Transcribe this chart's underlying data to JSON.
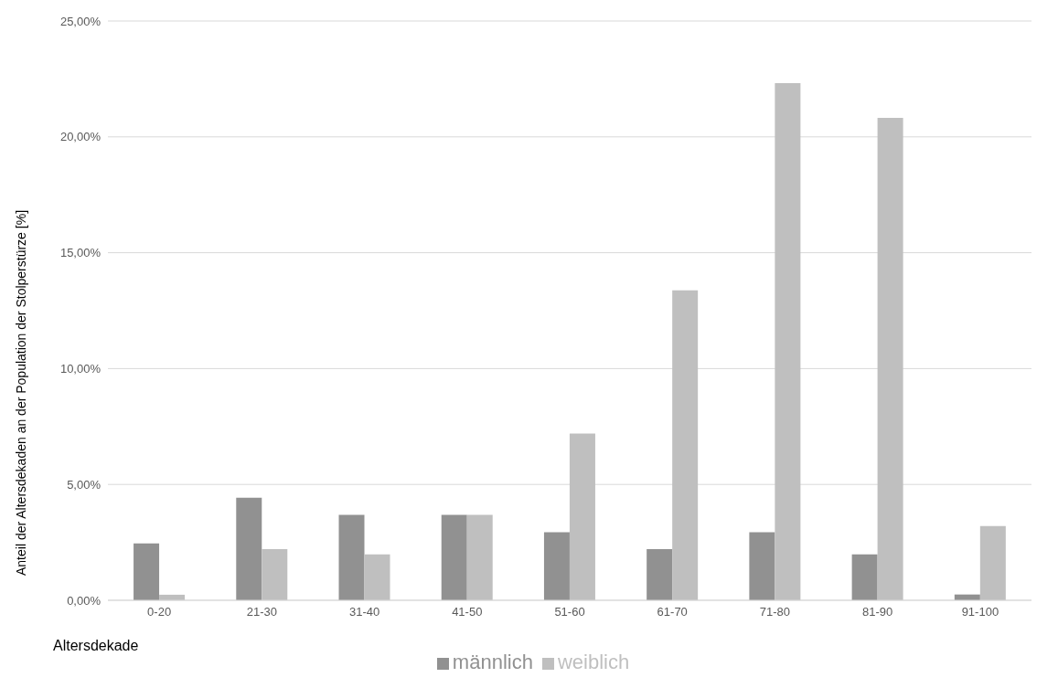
{
  "chart_data": {
    "type": "bar",
    "xlabel": "Altersdekade",
    "ylabel": "Anteil der Altersdekaden an der Population der Stolperstürze [%]",
    "categories": [
      "0-20",
      "21-30",
      "31-40",
      "41-50",
      "51-60",
      "61-70",
      "71-80",
      "81-90",
      "91-100"
    ],
    "series": [
      {
        "name": "männlich",
        "color": "#919191",
        "values": [
          2.45,
          4.43,
          3.69,
          3.69,
          2.94,
          2.21,
          2.94,
          1.98,
          0.25
        ]
      },
      {
        "name": "weiblich",
        "color": "#bfbfbf",
        "values": [
          0.24,
          2.21,
          1.98,
          3.69,
          7.2,
          13.38,
          22.32,
          20.82,
          3.2
        ]
      }
    ],
    "ylim": [
      0,
      25
    ],
    "yticks": [
      {
        "value": 0,
        "label": "0,00%"
      },
      {
        "value": 5,
        "label": "5,00%"
      },
      {
        "value": 10,
        "label": "10,00%"
      },
      {
        "value": 15,
        "label": "15,00%"
      },
      {
        "value": 20,
        "label": "20,00%"
      },
      {
        "value": 25,
        "label": "25,00%"
      }
    ],
    "grid": "y",
    "legend": "bottom"
  }
}
